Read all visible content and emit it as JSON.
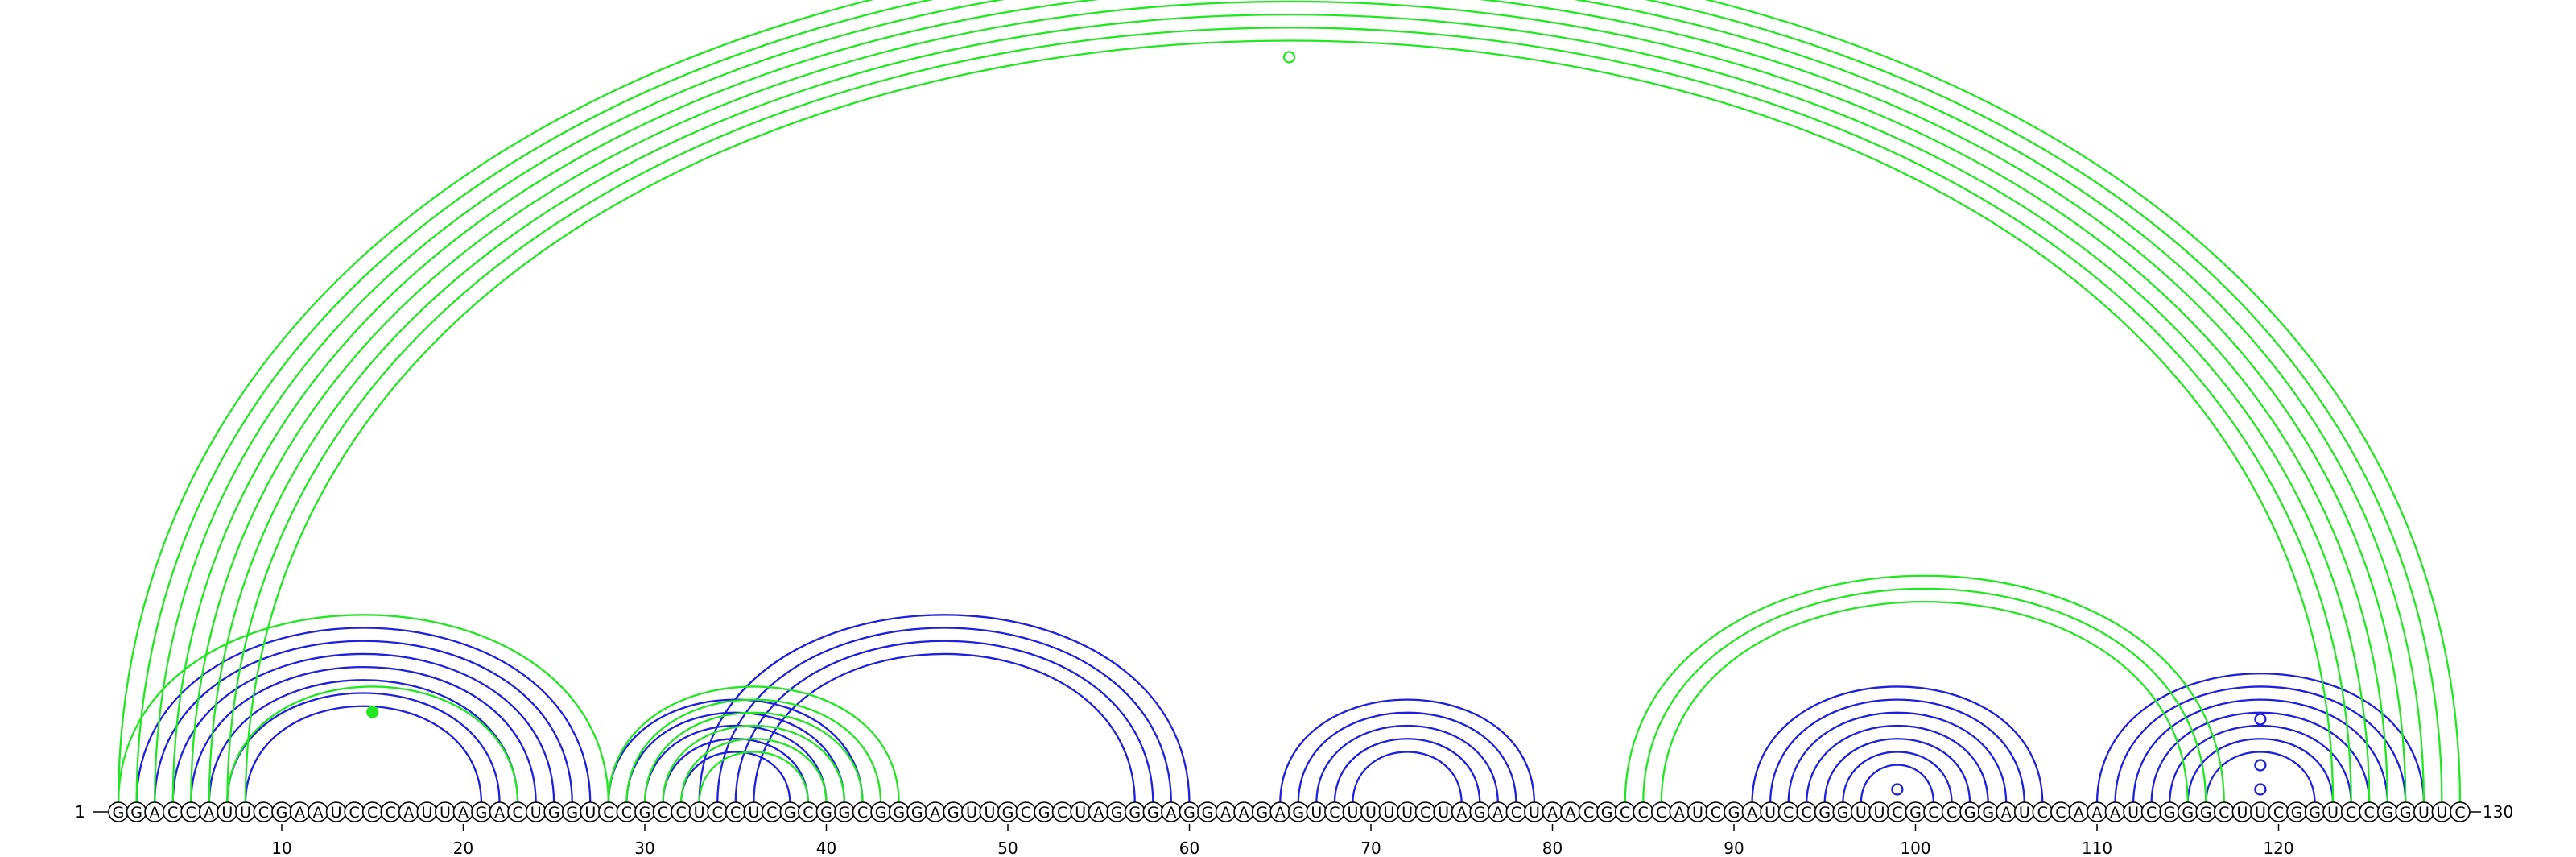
{
  "sequence": "GGACCAUUCGAAUCCCAUUAGACUGGUCCGCCUCCUCGCGGCGGGAGUUGCGCUAGGGAGGAAGAGUCUUUUCUAGACUAACGCCCAUCGAUCCGGUUCGCCGGAUCCAAAUCGGGCUUCGGUCCGGUUC",
  "start_label": "1",
  "end_label": "130",
  "ticks": [
    10,
    20,
    30,
    40,
    50,
    60,
    70,
    80,
    90,
    100,
    110,
    120
  ],
  "colors": {
    "blue": "#1f1fdc",
    "green": "#22e622"
  },
  "pairs": {
    "blue": [
      [
        2,
        27
      ],
      [
        3,
        26
      ],
      [
        4,
        25
      ],
      [
        5,
        24
      ],
      [
        6,
        23
      ],
      [
        7,
        22
      ],
      [
        8,
        21
      ],
      [
        28,
        42
      ],
      [
        29,
        41
      ],
      [
        30,
        40
      ],
      [
        31,
        39
      ],
      [
        32,
        38
      ],
      [
        33,
        60
      ],
      [
        34,
        59
      ],
      [
        35,
        58
      ],
      [
        36,
        57
      ],
      [
        65,
        79
      ],
      [
        66,
        78
      ],
      [
        67,
        77
      ],
      [
        68,
        76
      ],
      [
        69,
        75
      ],
      [
        91,
        107
      ],
      [
        92,
        106
      ],
      [
        93,
        105
      ],
      [
        94,
        104
      ],
      [
        95,
        103
      ],
      [
        96,
        102
      ],
      [
        97,
        101
      ],
      [
        110,
        128
      ],
      [
        111,
        127
      ],
      [
        112,
        126
      ],
      [
        113,
        125
      ],
      [
        114,
        124
      ],
      [
        115,
        123
      ],
      [
        116,
        122
      ]
    ],
    "green": [
      [
        1,
        28
      ],
      [
        7,
        23
      ],
      [
        28,
        44
      ],
      [
        29,
        43
      ],
      [
        30,
        42
      ],
      [
        31,
        41
      ],
      [
        32,
        40
      ],
      [
        33,
        39
      ],
      [
        84,
        117
      ],
      [
        85,
        116
      ],
      [
        86,
        115
      ],
      [
        1,
        130
      ],
      [
        2,
        129
      ],
      [
        3,
        128
      ],
      [
        4,
        127
      ],
      [
        5,
        126
      ],
      [
        6,
        125
      ],
      [
        7,
        124
      ],
      [
        8,
        123
      ]
    ]
  },
  "markers": [
    {
      "color": "green",
      "pos": 65.5,
      "level": "top-arc",
      "filled": false
    },
    {
      "color": "green",
      "pos": 15,
      "level": "inner",
      "filled": true
    },
    {
      "color": "blue",
      "pos": 99,
      "level": "hairpin",
      "filled": false
    },
    {
      "color": "blue",
      "pos": 119,
      "level": "mid",
      "filled": false
    },
    {
      "color": "blue",
      "pos": 119,
      "level": "low",
      "filled": false
    },
    {
      "color": "blue",
      "pos": 119,
      "level": "outer",
      "filled": false
    }
  ]
}
